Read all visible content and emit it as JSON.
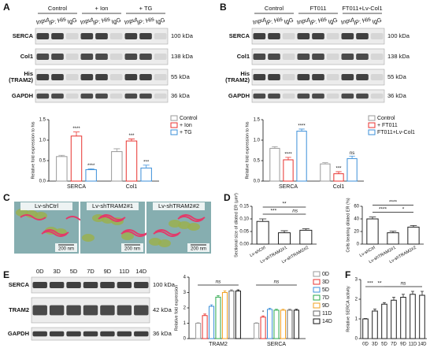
{
  "panel_labels": [
    "A",
    "B",
    "C",
    "D",
    "E",
    "F"
  ],
  "blots": [
    {
      "groups": [
        "Control",
        "+ Ion",
        "+ TG"
      ],
      "lanes": [
        "Input",
        "IP: His",
        "IgG"
      ],
      "rows": [
        {
          "name": [
            "SERCA"
          ],
          "size": "100 kDa"
        },
        {
          "name": [
            "Col1"
          ],
          "size": "138 kDa"
        },
        {
          "name": [
            "His",
            "(TRAM2)"
          ],
          "size": "55 kDa"
        },
        {
          "name": [
            "GAPDH"
          ],
          "size": "36 kDa"
        }
      ]
    },
    {
      "groups": [
        "Control",
        "FT011",
        "FT011+Lv-Col1"
      ],
      "lanes": [
        "Input",
        "IP: His",
        "IgG"
      ],
      "rows": [
        {
          "name": [
            "SERCA"
          ],
          "size": "100 kDa"
        },
        {
          "name": [
            "Col1"
          ],
          "size": "138 kDa"
        },
        {
          "name": [
            "His",
            "(TRAM2)"
          ],
          "size": "55 kDa"
        },
        {
          "name": [
            "GAPDH"
          ],
          "size": "36 kDa"
        }
      ]
    },
    {
      "lanes": [
        "0D",
        "3D",
        "5D",
        "7D",
        "9D",
        "11D",
        "14D"
      ],
      "rows": [
        {
          "name": [
            "SERCA"
          ],
          "size": "100 kDa"
        },
        {
          "name": [
            "TRAM2"
          ],
          "size": "42 kDa"
        },
        {
          "name": [
            "GAPDH"
          ],
          "size": "36 kDa"
        }
      ]
    }
  ],
  "micrographs": {
    "labels": [
      "Lv-shCtrl",
      "Lv-shTRAM2#1",
      "Lv-shTRAM2#2"
    ],
    "scale_bar": "200 nm"
  },
  "chart_data": [
    {
      "type": "bar",
      "y_label": "Relative fold expression to his",
      "categories": [
        "SERCA",
        "Col1"
      ],
      "ylim": [
        0,
        1.5
      ],
      "yticks": [
        {
          "value": 0,
          "label": "0.0"
        },
        {
          "value": 0.5,
          "label": "0.5"
        },
        {
          "value": 1,
          "label": "1.0"
        },
        {
          "value": 1.5,
          "label": "1.5"
        }
      ],
      "legend": "right",
      "bar_style": "outline",
      "series": [
        {
          "name": "Control",
          "color": "#9a9a9a",
          "values": [
            0.6,
            0.72
          ],
          "errors": [
            0.03,
            0.07
          ],
          "significance": [
            null,
            null
          ]
        },
        {
          "name": "+ Ion",
          "color": "#e8322f",
          "values": [
            1.1,
            0.98
          ],
          "errors": [
            0.1,
            0.05
          ],
          "significance": [
            "****",
            "***"
          ]
        },
        {
          "name": "+ TG",
          "color": "#3b8fd9",
          "values": [
            0.28,
            0.32
          ],
          "errors": [
            0.02,
            0.07
          ],
          "significance": [
            "****",
            "***"
          ]
        }
      ]
    },
    {
      "type": "bar",
      "y_label": "Relative fold expression to his",
      "categories": [
        "SERCA",
        "Col1"
      ],
      "ylim": [
        0,
        1.5
      ],
      "yticks": [
        {
          "value": 0,
          "label": "0.0"
        },
        {
          "value": 0.5,
          "label": "0.5"
        },
        {
          "value": 1,
          "label": "1.0"
        },
        {
          "value": 1.5,
          "label": "1.5"
        }
      ],
      "legend": "right",
      "bar_style": "outline",
      "series": [
        {
          "name": "Control",
          "color": "#9a9a9a",
          "values": [
            0.8,
            0.42
          ],
          "errors": [
            0.04,
            0.03
          ],
          "significance": [
            null,
            null
          ]
        },
        {
          "name": "+ FT011",
          "color": "#e8322f",
          "values": [
            0.52,
            0.18
          ],
          "errors": [
            0.06,
            0.05
          ],
          "significance": [
            "****",
            "***"
          ]
        },
        {
          "name": "FT011+Lv-Col1",
          "color": "#3b8fd9",
          "values": [
            1.22,
            0.55
          ],
          "errors": [
            0.05,
            0.06
          ],
          "significance": [
            "****",
            "ns"
          ]
        }
      ]
    },
    {
      "type": "bar",
      "y_label": "Sectional size of dilated ER (μm²)",
      "categories": [
        "Lv-shCtrl",
        "Lv-shTRAM2#1",
        "Lv-shTRAM2#2"
      ],
      "ylim": [
        0,
        0.15
      ],
      "yticks": [
        {
          "value": 0,
          "label": "0.00"
        },
        {
          "value": 0.05,
          "label": "0.05"
        },
        {
          "value": 0.1,
          "label": "0.10"
        },
        {
          "value": 0.15,
          "label": "0.15"
        }
      ],
      "bar_style": "outline",
      "color": "#222222",
      "values": [
        0.09,
        0.045,
        0.055
      ],
      "errors": [
        0.01,
        0.008,
        0.006
      ],
      "comparisons": [
        {
          "label": "**",
          "between": [
            0,
            2
          ]
        },
        {
          "label": "***",
          "between": [
            0,
            1
          ]
        },
        {
          "label": "ns",
          "between": [
            1,
            2
          ]
        }
      ]
    },
    {
      "type": "bar",
      "y_label": "Cells bearing dilated ER (%)",
      "categories": [
        "Lv-shCtrl",
        "Lv-shTRAM2#1",
        "Lv-shTRAM2#2"
      ],
      "ylim": [
        0,
        60
      ],
      "yticks": [
        0,
        20,
        40,
        60
      ],
      "bar_style": "outline",
      "color": "#222222",
      "values": [
        40,
        18,
        27
      ],
      "errors": [
        3,
        2.5,
        2.5
      ],
      "comparisons": [
        {
          "label": "****",
          "between": [
            0,
            2
          ]
        },
        {
          "label": "****",
          "between": [
            0,
            1
          ]
        },
        {
          "label": "*",
          "between": [
            1,
            2
          ]
        }
      ]
    },
    {
      "type": "bar",
      "y_label": "Relative fold expression",
      "categories": [
        "TRAM2",
        "SERCA"
      ],
      "ylim": [
        0,
        4
      ],
      "yticks": [
        0,
        1,
        2,
        3,
        4
      ],
      "legend": "right",
      "bar_style": "outline",
      "series": [
        {
          "name": "0D",
          "color": "#9a9a9a",
          "values": [
            1.0,
            1.0
          ],
          "errors": [
            0.03,
            0.03
          ],
          "significance": [
            null,
            null
          ]
        },
        {
          "name": "3D",
          "color": "#e8322f",
          "values": [
            1.5,
            1.4
          ],
          "errors": [
            0.1,
            0.08
          ],
          "significance": [
            null,
            "*"
          ]
        },
        {
          "name": "5D",
          "color": "#3b8fd9",
          "values": [
            2.1,
            1.9
          ],
          "errors": [
            0.1,
            0.08
          ],
          "significance": [
            null,
            null
          ]
        },
        {
          "name": "7D",
          "color": "#2aa84a",
          "values": [
            2.7,
            1.85
          ],
          "errors": [
            0.1,
            0.06
          ],
          "significance": [
            null,
            null
          ]
        },
        {
          "name": "9D",
          "color": "#f0a020",
          "values": [
            3.0,
            1.85
          ],
          "errors": [
            0.1,
            0.06
          ],
          "significance": [
            null,
            null
          ]
        },
        {
          "name": "11D",
          "color": "#666666",
          "values": [
            3.1,
            1.85
          ],
          "errors": [
            0.08,
            0.06
          ],
          "significance": [
            null,
            null
          ]
        },
        {
          "name": "14D",
          "color": "#111111",
          "values": [
            3.1,
            1.85
          ],
          "errors": [
            0.08,
            0.06
          ],
          "significance": [
            null,
            null
          ]
        }
      ],
      "comparisons": [
        {
          "label": "ns",
          "between": [
            0,
            0
          ]
        },
        {
          "label": "ns",
          "between": [
            1,
            1
          ]
        }
      ]
    },
    {
      "type": "bar",
      "y_label": "Relative SERCA activity",
      "categories": [
        "0D",
        "3D",
        "5D",
        "7D",
        "9D",
        "11D",
        "14D"
      ],
      "ylim": [
        0,
        3
      ],
      "yticks": [
        0,
        1,
        2,
        3
      ],
      "bar_style": "outline",
      "color": "#222222",
      "values": [
        1.0,
        1.4,
        1.75,
        1.95,
        2.1,
        2.25,
        2.2
      ],
      "errors": [
        0.02,
        0.1,
        0.08,
        0.15,
        0.15,
        0.15,
        0.2
      ],
      "comparisons": [
        {
          "label": "***",
          "between": [
            0,
            1
          ]
        },
        {
          "label": "**",
          "between": [
            1,
            2
          ]
        },
        {
          "label": "ns",
          "between": [
            2,
            6
          ]
        }
      ]
    }
  ]
}
